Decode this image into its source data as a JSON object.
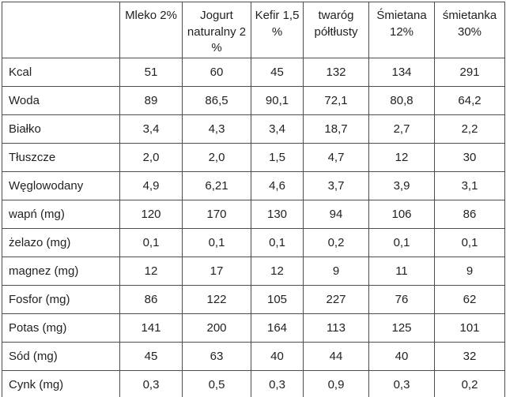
{
  "chart_data": {
    "type": "table",
    "corner_label": "",
    "columns": [
      "Mleko 2%",
      "Jogurt naturalny 2 %",
      "Kefir 1,5 %",
      "twaróg półtłusty",
      "Śmietana 12%",
      "śmietanka 30%"
    ],
    "rows": [
      {
        "label": "Kcal",
        "values": [
          "51",
          "60",
          "45",
          "132",
          "134",
          "291"
        ]
      },
      {
        "label": "Woda",
        "values": [
          "89",
          "86,5",
          "90,1",
          "72,1",
          "80,8",
          "64,2"
        ]
      },
      {
        "label": "Białko",
        "values": [
          "3,4",
          "4,3",
          "3,4",
          "18,7",
          "2,7",
          "2,2"
        ]
      },
      {
        "label": "Tłuszcze",
        "values": [
          "2,0",
          "2,0",
          "1,5",
          "4,7",
          "12",
          "30"
        ]
      },
      {
        "label": "Węglowodany",
        "values": [
          "4,9",
          "6,21",
          "4,6",
          "3,7",
          "3,9",
          "3,1"
        ]
      },
      {
        "label": "wapń (mg)",
        "values": [
          "120",
          "170",
          "130",
          "94",
          "106",
          "86"
        ]
      },
      {
        "label": "żelazo (mg)",
        "values": [
          "0,1",
          "0,1",
          "0,1",
          "0,2",
          "0,1",
          "0,1"
        ]
      },
      {
        "label": "magnez (mg)",
        "values": [
          "12",
          "17",
          "12",
          "9",
          "11",
          "9"
        ]
      },
      {
        "label": "Fosfor (mg)",
        "values": [
          "86",
          "122",
          "105",
          "227",
          "76",
          "62"
        ]
      },
      {
        "label": "Potas (mg)",
        "values": [
          "141",
          "200",
          "164",
          "113",
          "125",
          "101"
        ]
      },
      {
        "label": "Sód (mg)",
        "values": [
          "45",
          "63",
          "40",
          "44",
          "40",
          "32"
        ]
      },
      {
        "label": "Cynk (mg)",
        "values": [
          "0,3",
          "0,5",
          "0,3",
          "0,9",
          "0,3",
          "0,2"
        ]
      }
    ],
    "colors": {
      "border": "#4d4d4d",
      "text": "#222222",
      "background": "#ffffff"
    }
  }
}
